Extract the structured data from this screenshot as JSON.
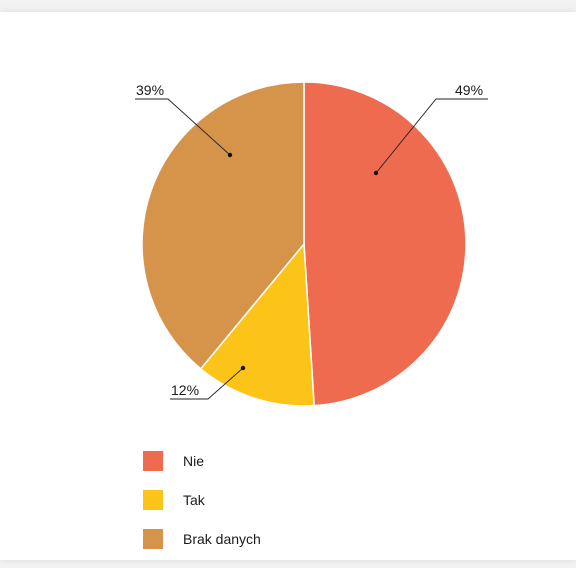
{
  "chart_data": {
    "type": "pie",
    "slices": [
      {
        "label": "Nie",
        "value": 49,
        "display": "49%",
        "color": "#ee6b4f"
      },
      {
        "label": "Tak",
        "value": 12,
        "display": "12%",
        "color": "#fcc419"
      },
      {
        "label": "Brak danych",
        "value": 39,
        "display": "39%",
        "color": "#d6944a"
      }
    ],
    "legend": [
      "Nie",
      "Tak",
      "Brak danych"
    ],
    "legend_position": "bottom-left"
  }
}
